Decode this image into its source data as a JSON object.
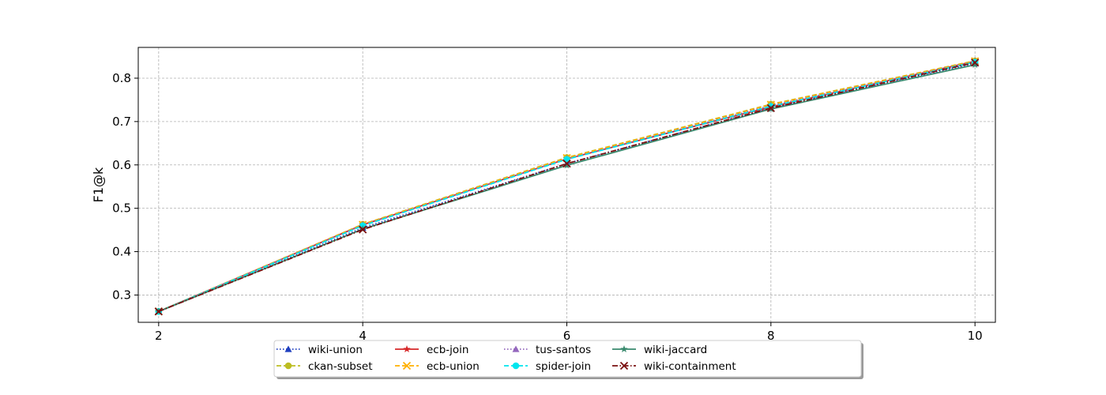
{
  "chart_data": {
    "type": "line",
    "title": "",
    "xlabel": "",
    "ylabel": "F1@k",
    "x": [
      2,
      4,
      6,
      8,
      10
    ],
    "xticks": [
      2,
      4,
      6,
      8,
      10
    ],
    "yticks": [
      0.3,
      0.4,
      0.5,
      0.6,
      0.7,
      0.8
    ],
    "ytick_labels": [
      "0.3",
      "0.4",
      "0.5",
      "0.6",
      "0.7",
      "0.8"
    ],
    "xlim": [
      1.8,
      10.2
    ],
    "ylim": [
      0.237,
      0.871
    ],
    "grid": true,
    "legend_position": "bottom-center",
    "legend_columns": 5,
    "series": [
      {
        "name": "wiki-union",
        "values": [
          0.262,
          0.455,
          0.603,
          0.731,
          0.834
        ],
        "color": "#1f3fbf",
        "dash": "dotted",
        "marker": "triangle"
      },
      {
        "name": "ckan-subset",
        "values": [
          0.262,
          0.463,
          0.617,
          0.74,
          0.84
        ],
        "color": "#bcbd22",
        "dash": "dashed",
        "marker": "circle"
      },
      {
        "name": "ecb-join",
        "values": [
          0.262,
          0.462,
          0.614,
          0.734,
          0.839
        ],
        "color": "#d62728",
        "dash": "solid",
        "marker": "star"
      },
      {
        "name": "ecb-union",
        "values": [
          0.262,
          0.462,
          0.616,
          0.739,
          0.839
        ],
        "color": "#ffb000",
        "dash": "dashed",
        "marker": "x"
      },
      {
        "name": "tus-santos",
        "values": [
          0.262,
          0.461,
          0.614,
          0.737,
          0.838
        ],
        "color": "#9467bd",
        "dash": "dotted",
        "marker": "triangle"
      },
      {
        "name": "spider-join",
        "values": [
          0.262,
          0.46,
          0.613,
          0.735,
          0.837
        ],
        "color": "#00e5ee",
        "dash": "dashed",
        "marker": "circle"
      },
      {
        "name": "wiki-jaccard",
        "values": [
          0.262,
          0.452,
          0.599,
          0.729,
          0.831
        ],
        "color": "#3a8a6e",
        "dash": "solid",
        "marker": "star"
      },
      {
        "name": "wiki-containment",
        "values": [
          0.262,
          0.451,
          0.603,
          0.731,
          0.836
        ],
        "color": "#7a1010",
        "dash": "dashdot",
        "marker": "x"
      }
    ]
  }
}
